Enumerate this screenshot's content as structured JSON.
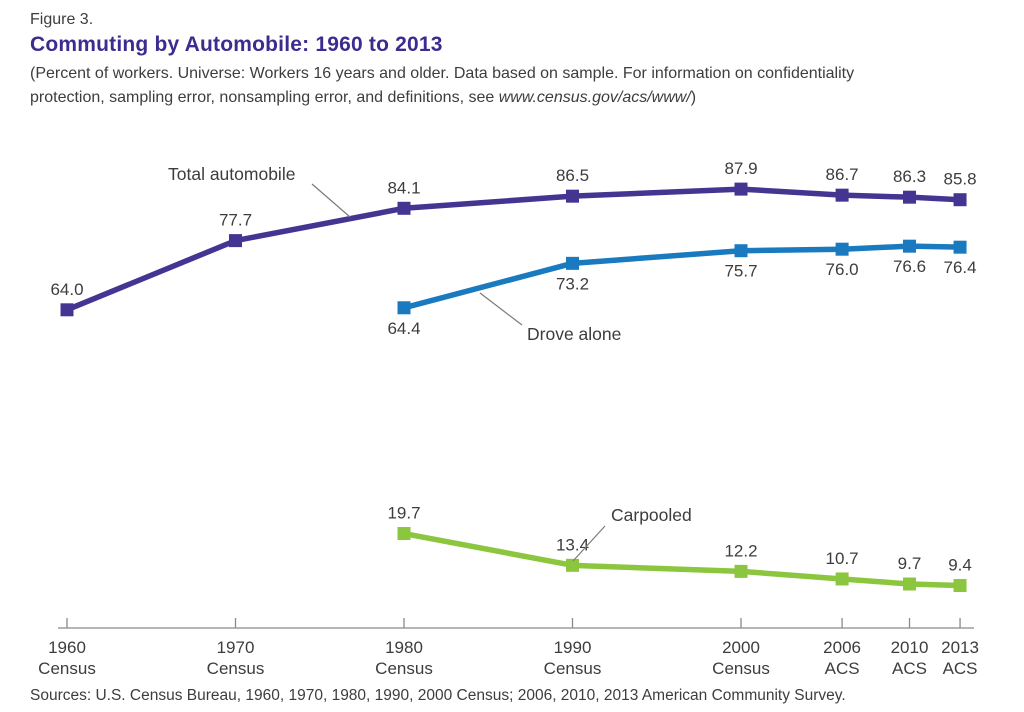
{
  "header": {
    "figure_label": "Figure 3.",
    "title": "Commuting by Automobile: 1960 to 2013",
    "subtitle_line1": "(Percent of workers. Universe: Workers 16 years and older. Data based on sample. For information on confidentiality",
    "subtitle_line2_prefix": "protection, sampling error, nonsampling error, and definitions, see ",
    "subtitle_url": "www.census.gov/acs/www/",
    "subtitle_close": ")"
  },
  "source": "Sources: U.S. Census Bureau, 1960, 1970, 1980, 1990, 2000 Census; 2006, 2010, 2013 American Community Survey.",
  "colors": {
    "title_purple": "#3b2d8f",
    "total_automobile": "#453593",
    "drove_alone": "#1a7abf",
    "carpooled": "#8cc63f",
    "text": "#3d3d3d",
    "axis": "#8a8a8a",
    "leader_line": "#7a7a7a"
  },
  "chart_data": {
    "type": "line",
    "title": "Commuting by Automobile: 1960 to 2013",
    "ylabel": "Percent of workers",
    "ylim": [
      0,
      100
    ],
    "grid": false,
    "legend_position": "inline-annotations",
    "x_categories": [
      {
        "year": 1960,
        "line1": "1960",
        "line2": "Census"
      },
      {
        "year": 1970,
        "line1": "1970",
        "line2": "Census"
      },
      {
        "year": 1980,
        "line1": "1980",
        "line2": "Census"
      },
      {
        "year": 1990,
        "line1": "1990",
        "line2": "Census"
      },
      {
        "year": 2000,
        "line1": "2000",
        "line2": "Census"
      },
      {
        "year": 2006,
        "line1": "2006",
        "line2": "ACS"
      },
      {
        "year": 2010,
        "line1": "2010",
        "line2": "ACS"
      },
      {
        "year": 2013,
        "line1": "2013",
        "line2": "ACS"
      }
    ],
    "series": [
      {
        "name": "Total automobile",
        "color": "#453593",
        "label_side": "above",
        "years": [
          1960,
          1970,
          1980,
          1990,
          2000,
          2006,
          2010,
          2013
        ],
        "values": [
          64.0,
          77.7,
          84.1,
          86.5,
          87.9,
          86.7,
          86.3,
          85.8
        ],
        "labels": [
          "64.0",
          "77.7",
          "84.1",
          "86.5",
          "87.9",
          "86.7",
          "86.3",
          "85.8"
        ]
      },
      {
        "name": "Drove alone",
        "color": "#1a7abf",
        "label_side": "below",
        "years": [
          1980,
          1990,
          2000,
          2006,
          2010,
          2013
        ],
        "values": [
          64.4,
          73.2,
          75.7,
          76.0,
          76.6,
          76.4
        ],
        "labels": [
          "64.4",
          "73.2",
          "75.7",
          "76.0",
          "76.6",
          "76.4"
        ]
      },
      {
        "name": "Carpooled",
        "color": "#8cc63f",
        "label_side": "above",
        "years": [
          1980,
          1990,
          2000,
          2006,
          2010,
          2013
        ],
        "values": [
          19.7,
          13.4,
          12.2,
          10.7,
          9.7,
          9.4
        ],
        "labels": [
          "19.7",
          "13.4",
          "12.2",
          "10.7",
          "9.7",
          "9.4"
        ]
      }
    ]
  }
}
